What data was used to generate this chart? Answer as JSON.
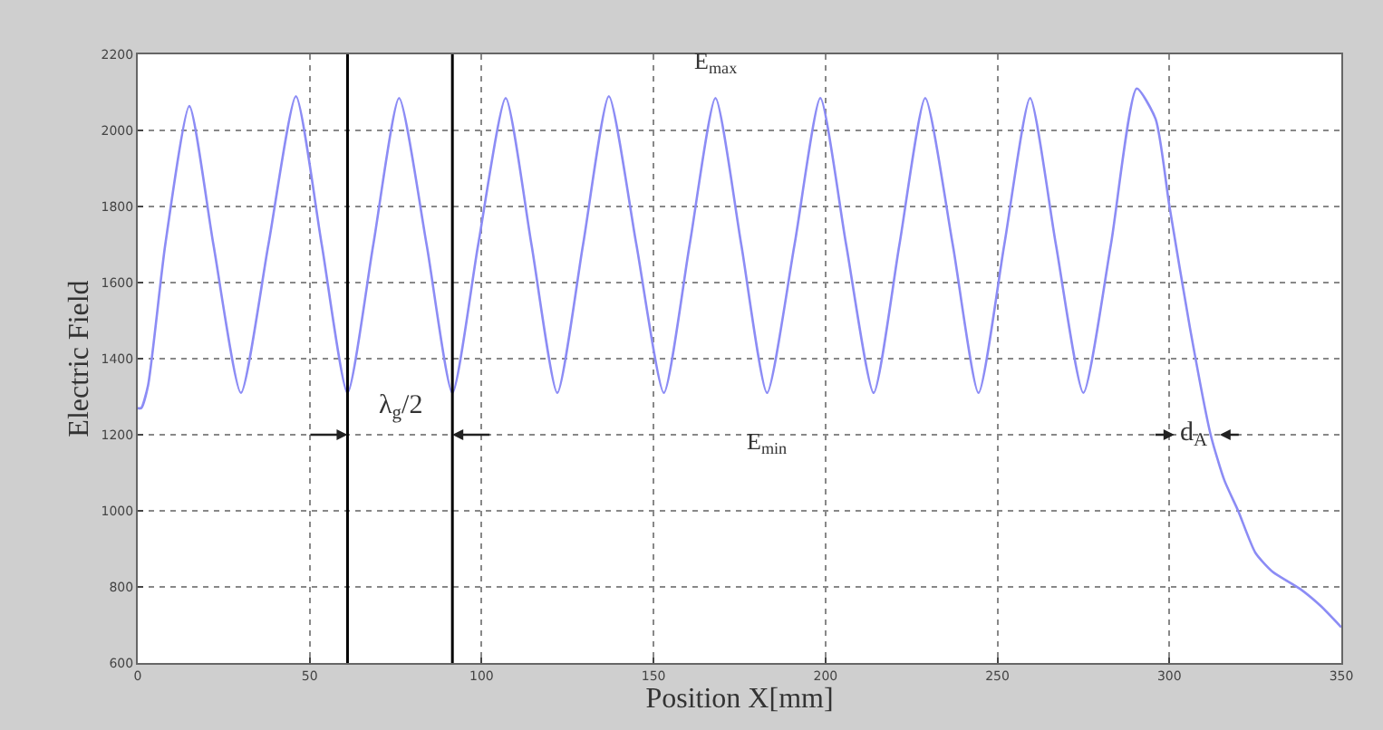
{
  "chart_data": {
    "type": "line",
    "xlabel": "Position X[mm]",
    "ylabel": "Electric Field",
    "x": [
      0,
      1,
      3,
      8,
      15,
      22,
      30,
      38,
      46,
      53.5,
      61,
      68.5,
      76,
      84,
      91.5,
      99,
      107,
      114.5,
      122,
      129.5,
      137,
      145,
      153,
      160.5,
      168,
      175.5,
      183,
      191,
      198.5,
      206,
      214,
      221.5,
      229,
      237,
      244.5,
      252,
      259.5,
      267,
      275,
      283,
      290.5,
      296,
      300,
      306,
      312,
      316,
      320,
      325,
      330,
      338,
      344,
      350
    ],
    "series": [
      {
        "color": "#8c8cf5",
        "values": [
          1270,
          1270,
          1330,
          1700,
          2064,
          1700,
          1310,
          1700,
          2090,
          1700,
          1310,
          1700,
          2085,
          1700,
          1310,
          1700,
          2085,
          1700,
          1310,
          1700,
          2090,
          1700,
          1310,
          1700,
          2085,
          1700,
          1310,
          1700,
          2085,
          1700,
          1310,
          1700,
          2085,
          1700,
          1310,
          1700,
          2085,
          1700,
          1310,
          1700,
          2110,
          2030,
          1802,
          1480,
          1200,
          1080,
          1000,
          890,
          840,
          795,
          750,
          694
        ]
      }
    ],
    "xlim": [
      0,
      350
    ],
    "ylim": [
      600,
      2200
    ],
    "xticks": [
      0,
      50,
      100,
      150,
      200,
      250,
      300,
      350
    ],
    "yticks": [
      600,
      800,
      1000,
      1200,
      1400,
      1600,
      1800,
      2000,
      2200
    ],
    "grid": true,
    "marker": "none",
    "line_style": "solid",
    "ref_lines": [
      {
        "axis": "x",
        "value": 61,
        "label": null,
        "color": "#000000"
      },
      {
        "axis": "x",
        "value": 91.5,
        "label": null,
        "color": "#000000"
      }
    ],
    "annotations": [
      {
        "text": "E$_{max}$",
        "x": 168,
        "y": 2085
      },
      {
        "text": "E$_{min}$",
        "x": 183,
        "y": 1310
      },
      "λ$_{g}$/2",
      {
        "text": "d$_{A}$",
        "x": 312,
        "y": 1200
      }
    ]
  }
}
